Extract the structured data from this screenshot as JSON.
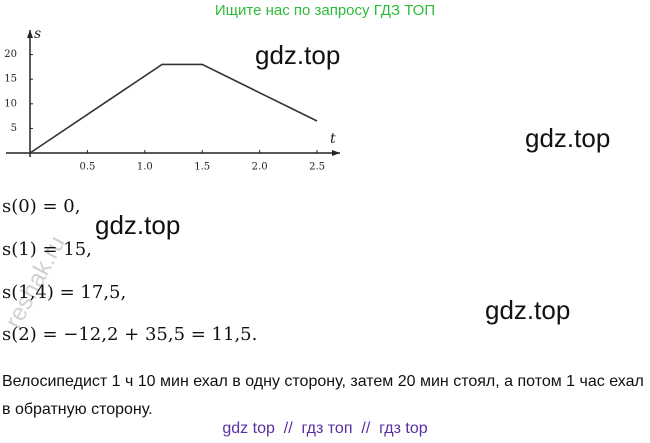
{
  "header": {
    "title": "Ищите нас по запросу ГДЗ ТОП"
  },
  "chart_data": {
    "type": "line",
    "xlabel": "t",
    "ylabel": "s",
    "x": [
      0,
      1.15,
      1.5,
      2.5
    ],
    "values": [
      0,
      18,
      18,
      6.5
    ],
    "color": "#333333",
    "xlim": [
      0,
      2.7
    ],
    "ylim": [
      0,
      25
    ],
    "xticks": [
      0.5,
      {
        "value": 1,
        "label": "1.0"
      },
      1.5,
      {
        "value": 2,
        "label": "2.0"
      },
      2.5
    ],
    "yticks": [
      5,
      10,
      15,
      20
    ]
  },
  "watermarks": [
    "gdz.top",
    "gdz.top",
    "gdz.top",
    "gdz.top",
    "reshak.ru"
  ],
  "solution": {
    "lines": [
      "s(0) = 0,",
      "s(1) = 15,",
      "s(1,4) = 17,5,",
      "s(2) = −12,2 + 35,5 = 11,5."
    ],
    "answer": "Велосипедист 1 ч 10 мин ехал в одну сторону, затем 20 мин стоял, а потом 1 час ехал в обратную сторону."
  },
  "footer": "gdz top  //  гдз топ  //  гдз top"
}
